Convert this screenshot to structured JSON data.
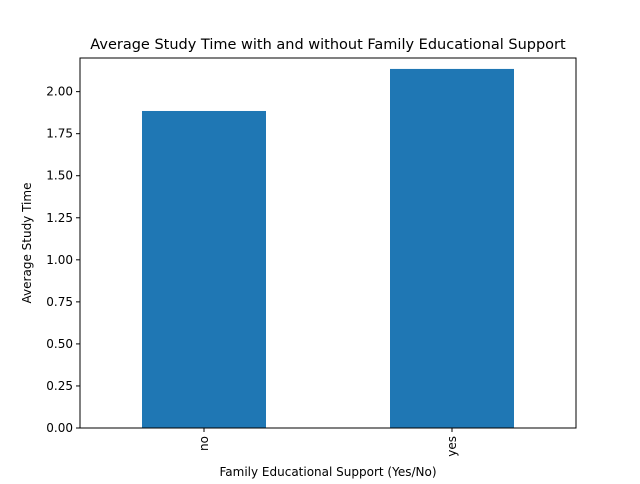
{
  "chart_data": {
    "type": "bar",
    "title": "Average Study Time with and without Family Educational Support",
    "xlabel": "Family Educational Support (Yes/No)",
    "ylabel": "Average Study Time",
    "categories": [
      "no",
      "yes"
    ],
    "values": [
      1.885,
      2.135
    ],
    "ylim": [
      0,
      2.2
    ],
    "yticks": [
      "0.00",
      "0.25",
      "0.50",
      "0.75",
      "1.00",
      "1.25",
      "1.50",
      "1.75",
      "2.00"
    ],
    "bar_color": "#1f77b4",
    "grid": false,
    "legend": "none"
  }
}
